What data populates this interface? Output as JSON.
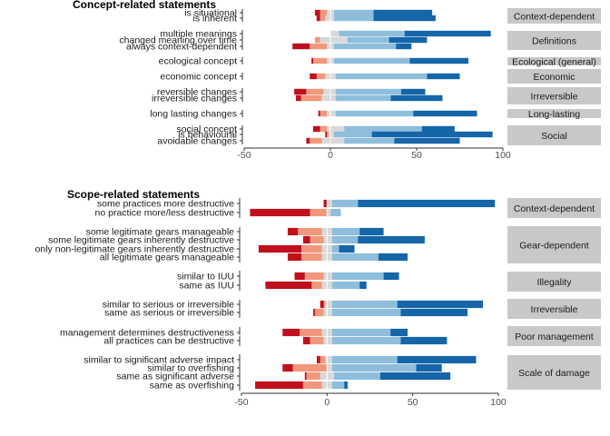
{
  "chart_data": [
    {
      "type": "bar",
      "orientation": "horizontal-diverging-stacked",
      "title": "Concept-related statements",
      "xlim": [
        -50,
        100
      ],
      "xticks": [
        "-50",
        "0",
        "50",
        "100"
      ],
      "stack_order": [
        "neg_strong",
        "neg_mid",
        "neg_weak",
        "pos_weak",
        "pos_mid",
        "pos_strong"
      ],
      "colors": {
        "neg_strong": "#c0101e",
        "neg_mid": "#f1987c",
        "neg_weak": "#d9d9d9",
        "pos_weak": "#d9d9d9",
        "pos_mid": "#8ebedc",
        "pos_strong": "#1565a9"
      },
      "groups": [
        {
          "name": "Context-dependent",
          "rows": [
            {
              "label": "is situational",
              "neg_strong": 3,
              "neg_mid": 4,
              "neg_weak": 2,
              "pos_weak": 2,
              "pos_mid": 23,
              "pos_strong": 34
            },
            {
              "label": "is inherent",
              "neg_strong": 2,
              "neg_mid": 3,
              "neg_weak": 3,
              "pos_weak": 2,
              "pos_mid": 23,
              "pos_strong": 36
            }
          ]
        },
        {
          "name": "Definitions",
          "rows": [
            {
              "label": "multiple meanings",
              "neg_strong": 0,
              "neg_mid": 0,
              "neg_weak": 0,
              "pos_weak": 5,
              "pos_mid": 38,
              "pos_strong": 50
            },
            {
              "label": "changed meaning over time",
              "neg_strong": 0,
              "neg_mid": 3,
              "neg_weak": 6,
              "pos_weak": 10,
              "pos_mid": 24,
              "pos_strong": 22
            },
            {
              "label": "always context-dependent",
              "neg_strong": 10,
              "neg_mid": 10,
              "neg_weak": 2,
              "pos_weak": 2,
              "pos_mid": 36,
              "pos_strong": 9
            }
          ]
        },
        {
          "name": "Ecological (general)",
          "rows": [
            {
              "label": "ecological concept",
              "neg_strong": 1,
              "neg_mid": 8,
              "neg_weak": 2,
              "pos_weak": 2,
              "pos_mid": 44,
              "pos_strong": 34
            }
          ]
        },
        {
          "name": "Economic",
          "rows": [
            {
              "label": "economic concept",
              "neg_strong": 4,
              "neg_mid": 5,
              "neg_weak": 3,
              "pos_weak": 3,
              "pos_mid": 53,
              "pos_strong": 19
            }
          ]
        },
        {
          "name": "Irreversible",
          "rows": [
            {
              "label": "reversible changes",
              "neg_strong": 7,
              "neg_mid": 10,
              "neg_weak": 4,
              "pos_weak": 3,
              "pos_mid": 38,
              "pos_strong": 14
            },
            {
              "label": "irreversible changes",
              "neg_strong": 3,
              "neg_mid": 12,
              "neg_weak": 5,
              "pos_weak": 3,
              "pos_mid": 32,
              "pos_strong": 30
            }
          ]
        },
        {
          "name": "Long-lasting",
          "rows": [
            {
              "label": "long lasting changes",
              "neg_strong": 1,
              "neg_mid": 4,
              "neg_weak": 2,
              "pos_weak": 3,
              "pos_mid": 45,
              "pos_strong": 37
            }
          ]
        },
        {
          "name": "Social",
          "rows": [
            {
              "label": "social concept",
              "neg_strong": 4,
              "neg_mid": 4,
              "neg_weak": 2,
              "pos_weak": 8,
              "pos_mid": 45,
              "pos_strong": 19
            },
            {
              "label": "is behavioural",
              "neg_strong": 1,
              "neg_mid": 1,
              "neg_weak": 1,
              "pos_weak": 2,
              "pos_mid": 22,
              "pos_strong": 70
            },
            {
              "label": "avoidable changes",
              "neg_strong": 2,
              "neg_mid": 7,
              "neg_weak": 5,
              "pos_weak": 8,
              "pos_mid": 29,
              "pos_strong": 38
            }
          ]
        }
      ]
    },
    {
      "type": "bar",
      "orientation": "horizontal-diverging-stacked",
      "title": "Scope-related statements",
      "xlim": [
        -50,
        100
      ],
      "xticks": [
        "-50",
        "0",
        "50",
        "100"
      ],
      "stack_order": [
        "neg_strong",
        "neg_mid",
        "neg_weak",
        "pos_weak",
        "pos_mid",
        "pos_strong"
      ],
      "colors": {
        "neg_strong": "#c0101e",
        "neg_mid": "#f1987c",
        "neg_weak": "#d9d9d9",
        "pos_weak": "#d9d9d9",
        "pos_mid": "#8ebedc",
        "pos_strong": "#1565a9"
      },
      "groups": [
        {
          "name": "Context-dependent",
          "rows": [
            {
              "label": "some practices more destructive",
              "neg_strong": 2,
              "neg_mid": 0,
              "neg_weak": 0,
              "pos_weak": 3,
              "pos_mid": 15,
              "pos_strong": 80
            },
            {
              "label": "no practice more/less destructive",
              "neg_strong": 35,
              "neg_mid": 10,
              "neg_weak": 0,
              "pos_weak": 2,
              "pos_mid": 6,
              "pos_strong": 0
            }
          ]
        },
        {
          "name": "Gear-dependent",
          "rows": [
            {
              "label": "some legitimate gears manageable",
              "neg_strong": 6,
              "neg_mid": 14,
              "neg_weak": 3,
              "pos_weak": 3,
              "pos_mid": 16,
              "pos_strong": 14
            },
            {
              "label": "some legitimate gears inherently destructive",
              "neg_strong": 4,
              "neg_mid": 8,
              "neg_weak": 2,
              "pos_weak": 3,
              "pos_mid": 15,
              "pos_strong": 39
            },
            {
              "label": "only non-legitimate gears inherently destructive",
              "neg_strong": 25,
              "neg_mid": 12,
              "neg_weak": 3,
              "pos_weak": 3,
              "pos_mid": 4,
              "pos_strong": 9
            },
            {
              "label": "all legitimate gears manageable",
              "neg_strong": 8,
              "neg_mid": 12,
              "neg_weak": 3,
              "pos_weak": 3,
              "pos_mid": 27,
              "pos_strong": 17
            }
          ]
        },
        {
          "name": "Illegality",
          "rows": [
            {
              "label": "similar to IUU",
              "neg_strong": 6,
              "neg_mid": 11,
              "neg_weak": 2,
              "pos_weak": 3,
              "pos_mid": 30,
              "pos_strong": 9
            },
            {
              "label": "same as IUU",
              "neg_strong": 27,
              "neg_mid": 6,
              "neg_weak": 3,
              "pos_weak": 3,
              "pos_mid": 16,
              "pos_strong": 4
            }
          ]
        },
        {
          "name": "Irreversible",
          "rows": [
            {
              "label": "similar to serious or irreversible",
              "neg_strong": 2,
              "neg_mid": 1,
              "neg_weak": 1,
              "pos_weak": 3,
              "pos_mid": 38,
              "pos_strong": 50
            },
            {
              "label": "same as serious or irreversible",
              "neg_strong": 1,
              "neg_mid": 5,
              "neg_weak": 2,
              "pos_weak": 3,
              "pos_mid": 40,
              "pos_strong": 39
            }
          ]
        },
        {
          "name": "Poor management",
          "rows": [
            {
              "label": "management determines destructiveness",
              "neg_strong": 10,
              "neg_mid": 13,
              "neg_weak": 3,
              "pos_weak": 3,
              "pos_mid": 34,
              "pos_strong": 10
            }
          ]
        },
        {
          "name": "Poor management",
          "rows": [
            {
              "label": "all practices can be destructive",
              "neg_strong": 4,
              "neg_mid": 8,
              "neg_weak": 2,
              "pos_weak": 3,
              "pos_mid": 40,
              "pos_strong": 27
            }
          ]
        },
        {
          "name": "Scale of damage",
          "rows": [
            {
              "label": "similar to significant adverse impact",
              "neg_strong": 2,
              "neg_mid": 3,
              "neg_weak": 1,
              "pos_weak": 3,
              "pos_mid": 38,
              "pos_strong": 46
            },
            {
              "label": "similar to overfishing",
              "neg_strong": 6,
              "neg_mid": 20,
              "neg_weak": 0,
              "pos_weak": 3,
              "pos_mid": 49,
              "pos_strong": 15
            },
            {
              "label": "same as significant adverse",
              "neg_strong": 1,
              "neg_mid": 8,
              "neg_weak": 4,
              "pos_weak": 4,
              "pos_mid": 27,
              "pos_strong": 41
            },
            {
              "label": "same as overfishing",
              "neg_strong": 28,
              "neg_mid": 11,
              "neg_weak": 3,
              "pos_weak": 3,
              "pos_mid": 7,
              "pos_strong": 2
            }
          ]
        }
      ]
    }
  ]
}
